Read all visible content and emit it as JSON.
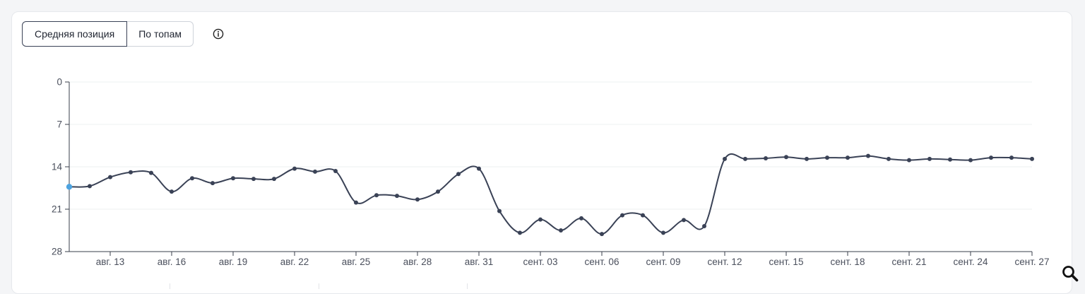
{
  "toggle": {
    "options": [
      "Средняя позиция",
      "По топам"
    ],
    "active_index": 0
  },
  "icons": {
    "info": "info-circle-icon",
    "zoom": "magnifier-icon"
  },
  "colors": {
    "line": "#3a4256",
    "highlight_point": "#4da3e0",
    "grid": "#eef0f2",
    "axis": "#3a3f4b"
  },
  "chart_data": {
    "type": "line",
    "title": "",
    "xlabel": "",
    "ylabel": "",
    "y_inverted": true,
    "ylim": [
      0,
      28
    ],
    "y_ticks": [
      0,
      7,
      14,
      21,
      28
    ],
    "xlim": [
      "2023-08-11",
      "2023-09-27"
    ],
    "x_tick_labels": [
      "авг. 13",
      "авг. 16",
      "авг. 19",
      "авг. 22",
      "авг. 25",
      "авг. 28",
      "авг. 31",
      "сент. 03",
      "сент. 06",
      "сент. 09",
      "сент. 12",
      "сент. 15",
      "сент. 18",
      "сент. 21",
      "сент. 24",
      "сент. 27"
    ],
    "grid": true,
    "series": [
      {
        "x": [
          "2023-08-11",
          "2023-08-12",
          "2023-08-13",
          "2023-08-14",
          "2023-08-15",
          "2023-08-16",
          "2023-08-17",
          "2023-08-18",
          "2023-08-19",
          "2023-08-20",
          "2023-08-21",
          "2023-08-22",
          "2023-08-23",
          "2023-08-24",
          "2023-08-25",
          "2023-08-26",
          "2023-08-27",
          "2023-08-28",
          "2023-08-29",
          "2023-08-30",
          "2023-08-31",
          "2023-09-01",
          "2023-09-02",
          "2023-09-03",
          "2023-09-04",
          "2023-09-05",
          "2023-09-06",
          "2023-09-07",
          "2023-09-08",
          "2023-09-09",
          "2023-09-10",
          "2023-09-11",
          "2023-09-12",
          "2023-09-13",
          "2023-09-14",
          "2023-09-15",
          "2023-09-16",
          "2023-09-17",
          "2023-09-18",
          "2023-09-19",
          "2023-09-20",
          "2023-09-21",
          "2023-09-22",
          "2023-09-23",
          "2023-09-24",
          "2023-09-25",
          "2023-09-26",
          "2023-09-27"
        ],
        "values": [
          17.3,
          17.2,
          15.7,
          14.9,
          15.0,
          18.1,
          15.9,
          16.7,
          15.9,
          16.0,
          16.0,
          14.3,
          14.8,
          14.7,
          19.9,
          18.7,
          18.8,
          19.4,
          18.1,
          15.2,
          14.3,
          21.3,
          24.9,
          22.7,
          24.5,
          22.5,
          25.1,
          22.0,
          22.0,
          24.9,
          22.8,
          23.8,
          12.7,
          12.7,
          12.6,
          12.4,
          12.7,
          12.5,
          12.5,
          12.2,
          12.7,
          12.9,
          12.7,
          12.8,
          12.9,
          12.5,
          12.5,
          12.7
        ]
      }
    ]
  }
}
